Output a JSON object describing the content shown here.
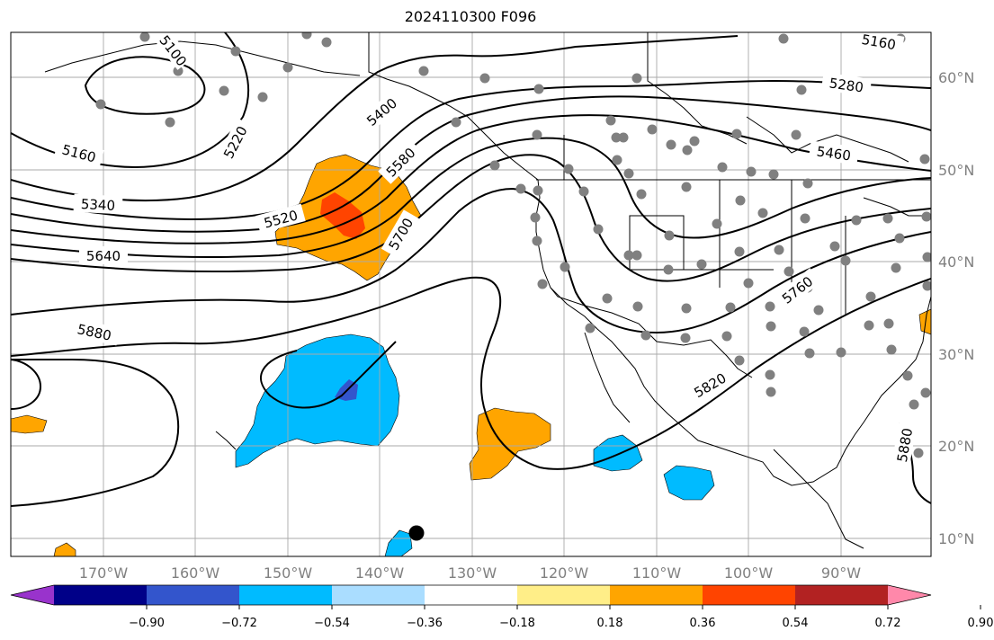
{
  "title": "2024110300 F096",
  "lon_labels": [
    "170°W",
    "160°W",
    "150°W",
    "140°W",
    "130°W",
    "120°W",
    "110°W",
    "100°W",
    "90°W"
  ],
  "lat_labels": [
    "10°N",
    "20°N",
    "30°N",
    "40°N",
    "50°N",
    "60°N"
  ],
  "contour_labels": [
    "5100",
    "5160",
    "5220",
    "5280",
    "5340",
    "5400",
    "5460",
    "5520",
    "5580",
    "5640",
    "5700",
    "5760",
    "5820",
    "5880",
    "5160",
    "5880"
  ],
  "colorbar": {
    "colors": [
      "#9933cc",
      "#000088",
      "#3355cc",
      "#00bbff",
      "#aaddff",
      "#ffffff",
      "#ffee88",
      "#ffa500",
      "#ff4400",
      "#b22222",
      "#ff88aa"
    ],
    "ticks": [
      "−0.90",
      "−0.72",
      "−0.54",
      "−0.36",
      "−0.18",
      "0.18",
      "0.36",
      "0.54",
      "0.72",
      "0.90"
    ]
  }
}
